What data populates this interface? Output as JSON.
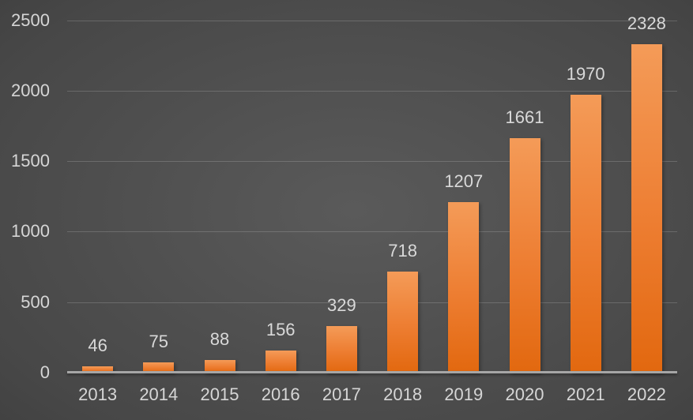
{
  "chart_data": {
    "type": "bar",
    "title": "",
    "xlabel": "",
    "ylabel": "",
    "categories": [
      "2013",
      "2014",
      "2015",
      "2016",
      "2017",
      "2018",
      "2019",
      "2020",
      "2021",
      "2022"
    ],
    "values": [
      46,
      75,
      88,
      156,
      329,
      718,
      1207,
      1661,
      1970,
      2328
    ],
    "ylim": [
      0,
      2500
    ],
    "yticks": [
      0,
      500,
      1000,
      1500,
      2000,
      2500
    ],
    "grid": true,
    "legend": false,
    "data_labels": true,
    "colors": {
      "bar_gradient_top": "#f49b58",
      "bar_gradient_mid": "#ed7d31",
      "bar_gradient_bottom": "#e2680f",
      "background_center": "#5a5a5a",
      "background_mid": "#474747",
      "background_edge": "#2c2c2c",
      "gridline": "rgba(255,255,255,0.17)",
      "axis_line": "#a6a6a6",
      "axis_label_text": "#d6d6d6",
      "data_label_text": "#d9d9d9"
    }
  }
}
